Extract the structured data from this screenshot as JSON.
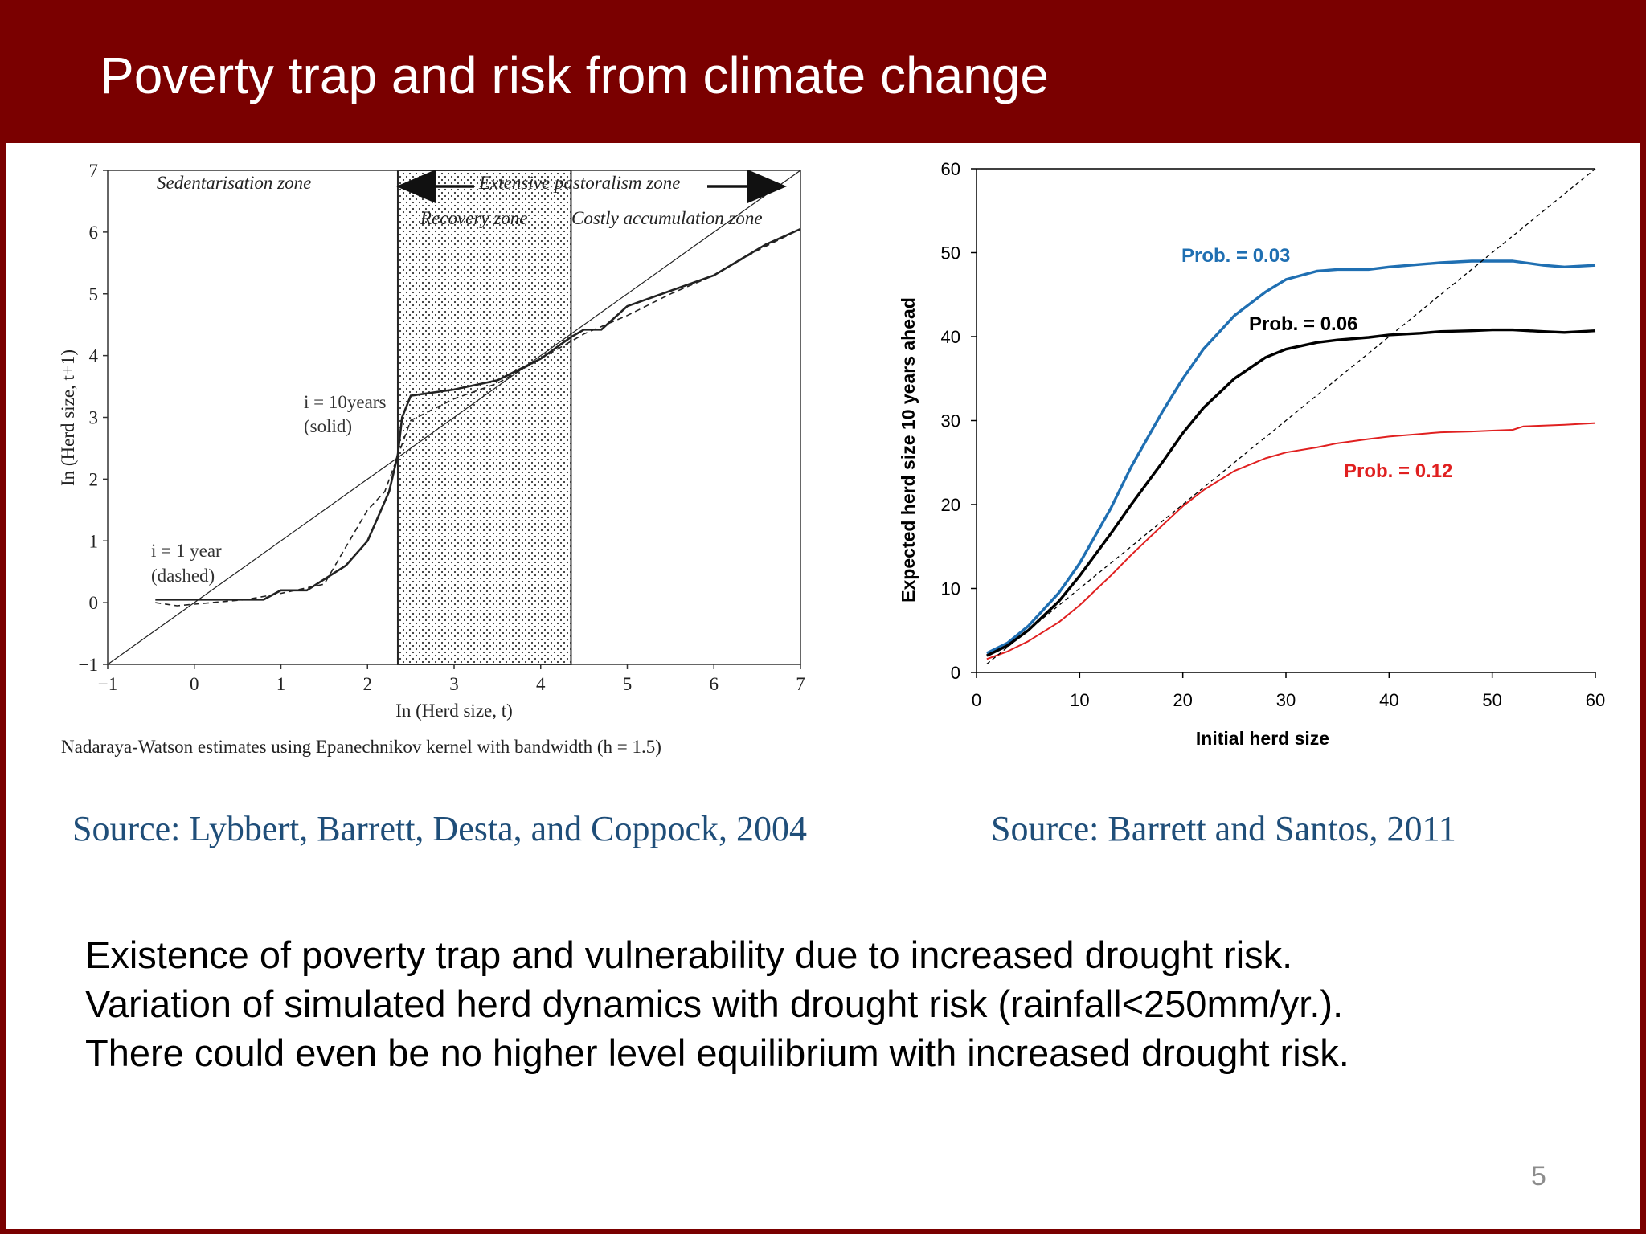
{
  "slide": {
    "title": "Poverty trap and risk from climate change",
    "page_number": "5",
    "source_left": "Source: Lybbert, Barrett, Desta, and Coppock, 2004",
    "source_right": "Source: Barrett and Santos, 2011",
    "bullets": [
      "Existence of poverty trap and vulnerability due to increased drought risk.",
      "Variation of simulated herd dynamics with drought risk (rainfall<250mm/yr.).",
      "There could even be no higher level equilibrium with increased drought risk."
    ],
    "colors": {
      "brand": "#7a0000",
      "source_text": "#1f4e79"
    }
  },
  "chart_data": [
    {
      "type": "line",
      "xlabel": "In (Herd size, t)",
      "ylabel": "In (Herd size, t+1)",
      "xlim": [
        -1,
        7
      ],
      "ylim": [
        -1,
        7
      ],
      "x_ticks": [
        "−1",
        "0",
        "1",
        "2",
        "3",
        "4",
        "5",
        "6",
        "7"
      ],
      "y_ticks": [
        "−1",
        "0",
        "1",
        "2",
        "3",
        "4",
        "5",
        "6",
        "7"
      ],
      "caption": "Nadaraya-Watson estimates using Epanechnikov kernel with bandwidth (h = 1.5)",
      "zones": {
        "sedentarisation": "Sedentarisation zone",
        "extensive": "Extensive pastoralism zone",
        "recovery": "Recovery zone",
        "costly": "Costly accumulation zone"
      },
      "shaded_region_x": [
        2.35,
        4.35
      ],
      "annotations": {
        "solid_line1": "i = 10years",
        "solid_line2": "(solid)",
        "dashed_line1": "i = 1 year",
        "dashed_line2": "(dashed)"
      },
      "series": [
        {
          "name": "i = 10years (solid)",
          "style": "solid",
          "x": [
            -0.45,
            0,
            0.3,
            0.8,
            1.0,
            1.3,
            1.75,
            2.0,
            2.25,
            2.35,
            2.4,
            2.5,
            3.0,
            3.5,
            4.0,
            4.35,
            4.5,
            4.7,
            5.0,
            5.3,
            5.6,
            6.0,
            6.3,
            6.6,
            7.0
          ],
          "y": [
            0.05,
            0.05,
            0.05,
            0.05,
            0.2,
            0.2,
            0.6,
            1.0,
            1.8,
            2.4,
            3.0,
            3.35,
            3.45,
            3.6,
            3.95,
            4.3,
            4.42,
            4.42,
            4.8,
            4.95,
            5.1,
            5.3,
            5.55,
            5.8,
            6.05
          ]
        },
        {
          "name": "i = 1 year (dashed)",
          "style": "dashed",
          "x": [
            -0.45,
            -0.2,
            0.2,
            0.6,
            1.0,
            1.5,
            1.75,
            2.0,
            2.2,
            2.5,
            3.0,
            3.5,
            4.0,
            4.5,
            5.0,
            5.5,
            6.0,
            6.5,
            7.0
          ],
          "y": [
            0.0,
            -0.05,
            0.0,
            0.05,
            0.15,
            0.3,
            0.9,
            1.5,
            1.8,
            2.95,
            3.3,
            3.55,
            3.95,
            4.35,
            4.65,
            5.0,
            5.3,
            5.7,
            6.05
          ]
        },
        {
          "name": "45-degree line",
          "style": "thin",
          "x": [
            -1,
            7
          ],
          "y": [
            -1,
            7
          ]
        }
      ]
    },
    {
      "type": "line",
      "xlabel": "Initial herd size",
      "ylabel": "Expected herd size 10 years  ahead",
      "xlim": [
        0,
        60
      ],
      "ylim": [
        0,
        60
      ],
      "x_ticks": [
        "0",
        "10",
        "20",
        "30",
        "40",
        "50",
        "60"
      ],
      "y_ticks": [
        "0",
        "10",
        "20",
        "30",
        "40",
        "50",
        "60"
      ],
      "series": [
        {
          "name": "Prob. = 0.03",
          "color": "#1f6fb2",
          "x": [
            1,
            3,
            5,
            8,
            10,
            13,
            15,
            18,
            20,
            22,
            25,
            28,
            30,
            33,
            35,
            38,
            40,
            43,
            45,
            48,
            50,
            52,
            55,
            57,
            60
          ],
          "y": [
            2.3,
            3.5,
            5.5,
            9.5,
            13,
            19.5,
            24.5,
            31,
            35,
            38.5,
            42.5,
            45.3,
            46.8,
            47.8,
            48.0,
            48.0,
            48.3,
            48.6,
            48.8,
            49.0,
            49.0,
            49.0,
            48.5,
            48.3,
            48.5
          ]
        },
        {
          "name": "Prob. = 0.06",
          "color": "#000000",
          "x": [
            1,
            3,
            5,
            8,
            10,
            13,
            15,
            18,
            20,
            22,
            25,
            28,
            30,
            33,
            35,
            38,
            40,
            43,
            45,
            48,
            50,
            52,
            55,
            57,
            60
          ],
          "y": [
            2.0,
            3.2,
            5.0,
            8.5,
            11.5,
            16.5,
            20.0,
            25.0,
            28.5,
            31.5,
            35.0,
            37.5,
            38.5,
            39.3,
            39.6,
            39.9,
            40.2,
            40.4,
            40.6,
            40.7,
            40.8,
            40.8,
            40.6,
            40.5,
            40.7
          ]
        },
        {
          "name": "Prob. = 0.12",
          "color": "#e02020",
          "x": [
            1,
            3,
            5,
            8,
            10,
            13,
            15,
            18,
            20,
            22,
            25,
            28,
            30,
            33,
            35,
            38,
            40,
            43,
            45,
            48,
            50,
            52,
            53,
            55,
            57,
            60
          ],
          "y": [
            1.6,
            2.5,
            3.7,
            6.0,
            8.0,
            11.5,
            14.0,
            17.5,
            19.8,
            21.7,
            24.0,
            25.5,
            26.2,
            26.8,
            27.3,
            27.8,
            28.1,
            28.4,
            28.6,
            28.7,
            28.8,
            28.9,
            29.3,
            29.4,
            29.5,
            29.7
          ]
        },
        {
          "name": "45-degree line",
          "color": "#000000",
          "style": "dashed",
          "x": [
            1,
            60
          ],
          "y": [
            1,
            60
          ]
        }
      ],
      "series_labels": [
        "Prob. = 0.03",
        "Prob. = 0.06",
        "Prob. = 0.12"
      ]
    }
  ]
}
